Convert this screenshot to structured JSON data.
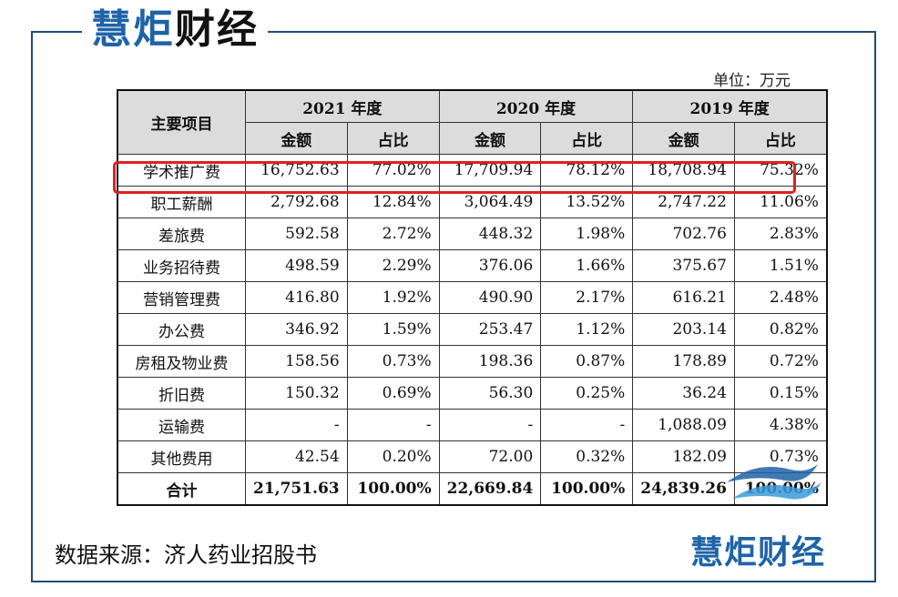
{
  "brand": {
    "part1": "慧炬",
    "part2": "财经"
  },
  "unit_label": "单位：万元",
  "table": {
    "col_item": "主要项目",
    "years": [
      "2021 年度",
      "2020 年度",
      "2019 年度"
    ],
    "sub_amount": "金额",
    "sub_ratio": "占比",
    "rows": [
      {
        "name": "学术推广费",
        "v": [
          "16,752.63",
          "77.02%",
          "17,709.94",
          "78.12%",
          "18,708.94",
          "75.32%"
        ]
      },
      {
        "name": "职工薪酬",
        "v": [
          "2,792.68",
          "12.84%",
          "3,064.49",
          "13.52%",
          "2,747.22",
          "11.06%"
        ]
      },
      {
        "name": "差旅费",
        "v": [
          "592.58",
          "2.72%",
          "448.32",
          "1.98%",
          "702.76",
          "2.83%"
        ]
      },
      {
        "name": "业务招待费",
        "v": [
          "498.59",
          "2.29%",
          "376.06",
          "1.66%",
          "375.67",
          "1.51%"
        ]
      },
      {
        "name": "营销管理费",
        "v": [
          "416.80",
          "1.92%",
          "490.90",
          "2.17%",
          "616.21",
          "2.48%"
        ]
      },
      {
        "name": "办公费",
        "v": [
          "346.92",
          "1.59%",
          "253.47",
          "1.12%",
          "203.14",
          "0.82%"
        ]
      },
      {
        "name": "房租及物业费",
        "v": [
          "158.56",
          "0.73%",
          "198.36",
          "0.87%",
          "178.89",
          "0.72%"
        ]
      },
      {
        "name": "折旧费",
        "v": [
          "150.32",
          "0.69%",
          "56.30",
          "0.25%",
          "36.24",
          "0.15%"
        ]
      },
      {
        "name": "运输费",
        "v": [
          "-",
          "-",
          "-",
          "-",
          "1,088.09",
          "4.38%"
        ]
      },
      {
        "name": "其他费用",
        "v": [
          "42.54",
          "0.20%",
          "72.00",
          "0.32%",
          "182.09",
          "0.73%"
        ]
      }
    ],
    "total": {
      "name": "合计",
      "v": [
        "21,751.63",
        "100.00%",
        "22,669.84",
        "100.00%",
        "24,839.26",
        "100.00%"
      ]
    }
  },
  "source": "数据来源：济人药业招股书",
  "colors": {
    "frame": "#1f4a7a",
    "brand_blue": "#1e63a8",
    "highlight": "#e02020",
    "header_bg": "#dcdcdc"
  }
}
